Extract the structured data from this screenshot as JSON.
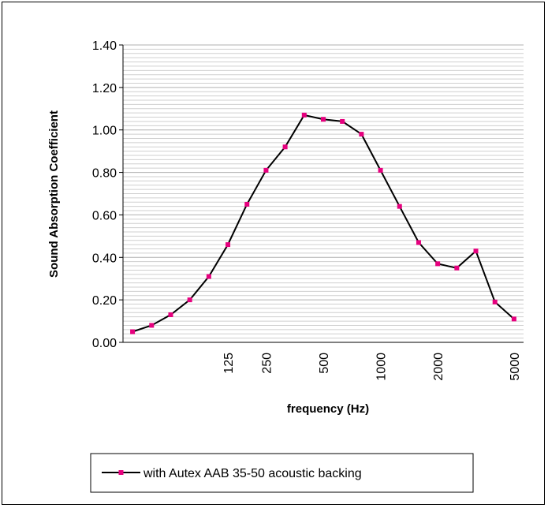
{
  "chart_data": {
    "type": "line",
    "xlabel": "frequency (Hz)",
    "ylabel": "Sound Absorption Coefficient",
    "ylim": [
      0,
      1.4
    ],
    "y_ticks": [
      "0.00",
      "0.20",
      "0.40",
      "0.60",
      "0.80",
      "1.00",
      "1.20",
      "1.40"
    ],
    "y_tick_values": [
      0,
      0.2,
      0.4,
      0.6,
      0.8,
      1.0,
      1.2,
      1.4
    ],
    "x_tick_labels": [
      {
        "label": "125",
        "index": 5
      },
      {
        "label": "250",
        "index": 7
      },
      {
        "label": "500",
        "index": 10
      },
      {
        "label": "1000",
        "index": 13
      },
      {
        "label": "2000",
        "index": 16
      },
      {
        "label": "5000",
        "index": 20
      }
    ],
    "grid": true,
    "legend_position": "bottom",
    "series": [
      {
        "name": "with Autex AAB 35-50 acoustic backing",
        "color": "#000000",
        "marker_color": "#e6007e",
        "values": [
          0.05,
          0.08,
          0.13,
          0.2,
          0.31,
          0.46,
          0.65,
          0.81,
          0.92,
          1.07,
          1.05,
          1.04,
          0.98,
          0.81,
          0.64,
          0.47,
          0.37,
          0.35,
          0.43,
          0.19,
          0.11
        ]
      }
    ]
  }
}
